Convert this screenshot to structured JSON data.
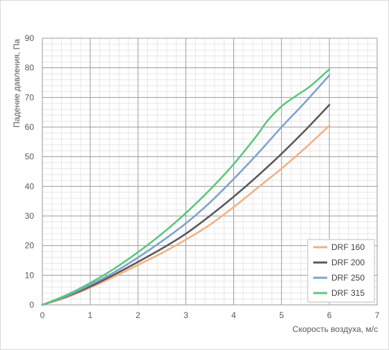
{
  "chart_data": {
    "type": "line",
    "xlabel": "Скорость воздуха, м/с",
    "ylabel": "Падение давления, Па",
    "xlim": [
      0,
      7
    ],
    "ylim": [
      0,
      90
    ],
    "x_ticks": [
      "0",
      "1",
      "2",
      "3",
      "4",
      "5",
      "6",
      "7"
    ],
    "y_ticks": [
      "0",
      "10",
      "20",
      "30",
      "40",
      "50",
      "60",
      "70",
      "80",
      "90"
    ],
    "grid": true,
    "legend_position": "bottom-right",
    "series": [
      {
        "name": "DRF 160",
        "color": "#F4B183",
        "x": [
          0,
          0.5,
          1,
          1.5,
          2,
          2.5,
          3,
          3.5,
          4,
          4.5,
          5,
          5.5,
          6
        ],
        "y": [
          0,
          2.5,
          5.8,
          9.5,
          13.5,
          17.5,
          22,
          27,
          33,
          39.5,
          46,
          53,
          60.5
        ]
      },
      {
        "name": "DRF 200",
        "color": "#595959",
        "x": [
          0,
          0.5,
          1,
          1.5,
          2,
          2.5,
          3,
          3.5,
          4,
          4.5,
          5,
          5.5,
          6
        ],
        "y": [
          0,
          2.8,
          6.2,
          10.2,
          14.5,
          19,
          24,
          30,
          36.5,
          43.5,
          51,
          59,
          67.5
        ]
      },
      {
        "name": "DRF 250",
        "color": "#7FA3CC",
        "x": [
          0,
          0.5,
          1,
          1.5,
          2,
          2.5,
          3,
          3.5,
          4,
          4.5,
          5,
          5.5,
          6
        ],
        "y": [
          0,
          3,
          6.8,
          11,
          16,
          21.5,
          27.5,
          34.5,
          42.5,
          51,
          60,
          68.5,
          77.5
        ]
      },
      {
        "name": "DRF 315",
        "color": "#5CC77F",
        "x": [
          0,
          0.5,
          1,
          1.5,
          2,
          2.5,
          3,
          3.5,
          4,
          4.5,
          4.7,
          5,
          5.3,
          5.6,
          6
        ],
        "y": [
          0,
          3.3,
          7.4,
          12.2,
          17.8,
          24,
          31,
          38.8,
          47.5,
          57.5,
          62,
          67,
          70.5,
          73.8,
          79.5
        ]
      }
    ]
  }
}
